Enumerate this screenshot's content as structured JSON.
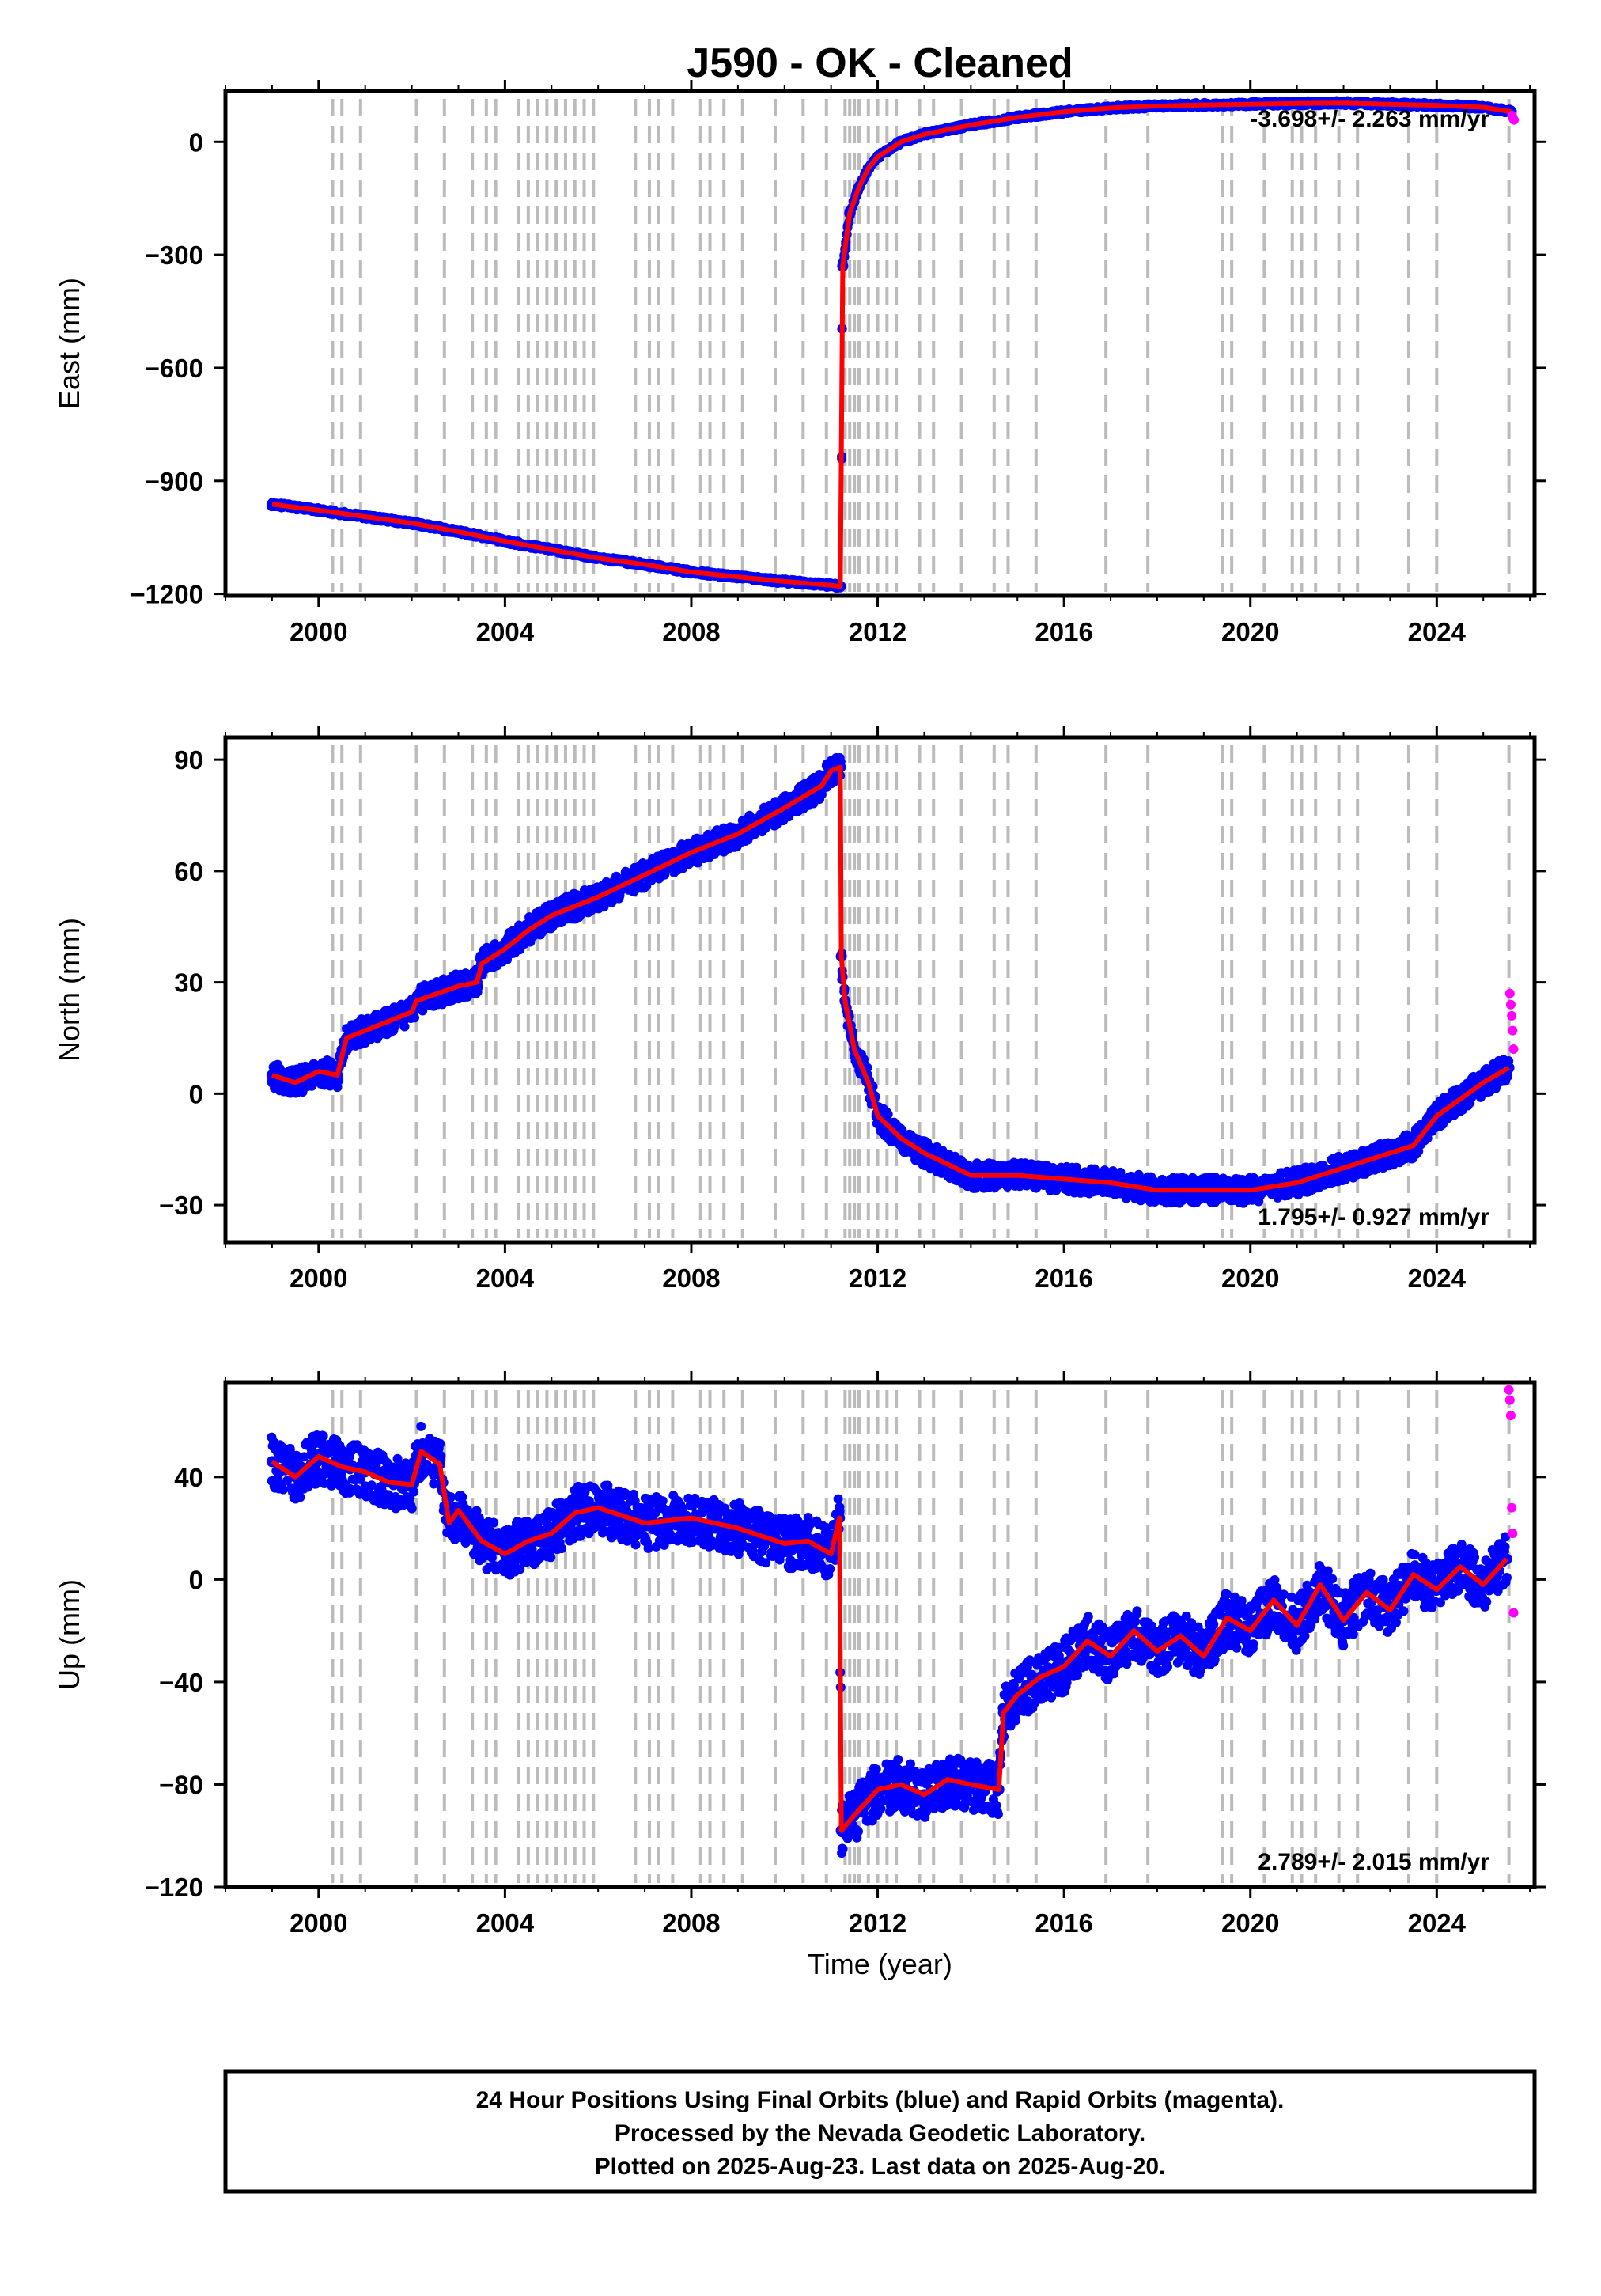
{
  "title": "J590  - OK - Cleaned",
  "colors": {
    "final_orbits": "#0000ff",
    "rapid_orbits": "#ff00ff",
    "model": "#ff0000",
    "event_lines": "#bbbbbb",
    "frame": "#000000"
  },
  "xlabel": "Time (year)",
  "footer": {
    "line1": "24 Hour Positions Using Final Orbits (blue) and Rapid Orbits (magenta).",
    "line2": "Processed by the Nevada Geodetic Laboratory.",
    "line3": "Plotted on 2025-Aug-23. Last data on 2025-Aug-20."
  },
  "chart_data": [
    {
      "type": "scatter",
      "panel": "east",
      "ylabel": "East (mm)",
      "rate_text": "-3.698+/- 2.263 mm/yr",
      "xlim": [
        1998.0,
        2026.1
      ],
      "ylim": [
        -1205,
        135
      ],
      "x_ticks": [
        2000,
        2004,
        2008,
        2012,
        2016,
        2020,
        2024
      ],
      "x_tick_labels": [
        "2000",
        "2004",
        "2008",
        "2012",
        "2016",
        "2020",
        "2024"
      ],
      "y_ticks": [
        -1200,
        -900,
        -600,
        -300,
        0
      ],
      "y_tick_labels": [
        "−1200",
        "−900",
        "−600",
        "−300",
        "0"
      ],
      "series": [
        {
          "role": "final",
          "x": [
            1999.0,
            2000.0,
            2001.0,
            2002.0,
            2003.0,
            2004.0,
            2005.0,
            2006.0,
            2007.0,
            2008.0,
            2009.0,
            2010.0,
            2011.0,
            2011.2,
            2011.25,
            2011.4,
            2011.6,
            2011.8,
            2012.0,
            2012.5,
            2013.0,
            2014.0,
            2015.0,
            2016.0,
            2017.0,
            2018.0,
            2019.0,
            2020.0,
            2021.0,
            2022.0,
            2023.0,
            2024.0,
            2025.0,
            2025.6
          ],
          "y": [
            -962,
            -978,
            -995,
            -1012,
            -1035,
            -1060,
            -1083,
            -1105,
            -1122,
            -1142,
            -1155,
            -1167,
            -1177,
            -1180,
            -330,
            -190,
            -120,
            -70,
            -40,
            0,
            20,
            45,
            65,
            80,
            90,
            95,
            98,
            100,
            102,
            103,
            100,
            97,
            92,
            80
          ]
        },
        {
          "role": "rapid",
          "x": [
            2025.62,
            2025.64,
            2025.66
          ],
          "y": [
            70,
            62,
            58
          ]
        }
      ]
    },
    {
      "type": "scatter",
      "panel": "north",
      "ylabel": "North (mm)",
      "rate_text": "1.795+/- 0.927 mm/yr",
      "xlim": [
        1998.0,
        2026.1
      ],
      "ylim": [
        -40,
        96
      ],
      "x_ticks": [
        2000,
        2004,
        2008,
        2012,
        2016,
        2020,
        2024
      ],
      "x_tick_labels": [
        "2000",
        "2004",
        "2008",
        "2012",
        "2016",
        "2020",
        "2024"
      ],
      "y_ticks": [
        -30,
        0,
        30,
        60,
        90
      ],
      "y_tick_labels": [
        "−30",
        "0",
        "30",
        "60",
        "90"
      ],
      "series": [
        {
          "role": "final",
          "x": [
            1999.0,
            1999.5,
            2000.0,
            2000.4,
            2000.6,
            2001.0,
            2002.0,
            2002.1,
            2003.0,
            2003.4,
            2003.5,
            2004.0,
            2004.5,
            2005.0,
            2006.0,
            2007.0,
            2008.0,
            2009.0,
            2010.0,
            2010.8,
            2011.0,
            2011.2,
            2011.22,
            2011.3,
            2011.5,
            2011.8,
            2012.0,
            2012.5,
            2013.0,
            2013.5,
            2014.0,
            2015.0,
            2016.0,
            2017.0,
            2018.0,
            2019.0,
            2019.5,
            2020.0,
            2021.0,
            2022.0,
            2023.0,
            2023.5,
            2024.0,
            2025.0,
            2025.55
          ],
          "y": [
            5,
            3,
            6,
            5,
            15,
            17,
            22,
            25,
            29,
            30,
            35,
            39,
            44,
            48,
            53,
            59,
            65,
            70,
            77,
            83,
            87,
            88,
            37,
            25,
            12,
            3,
            -6,
            -12,
            -16,
            -19,
            -22,
            -22,
            -23,
            -24,
            -26,
            -26,
            -26,
            -26,
            -24,
            -20,
            -16,
            -14,
            -6,
            3,
            7
          ]
        },
        {
          "role": "rapid",
          "x": [
            2025.57,
            2025.59,
            2025.61,
            2025.63,
            2025.65
          ],
          "y": [
            27,
            24,
            21,
            17,
            12
          ]
        }
      ]
    },
    {
      "type": "scatter",
      "panel": "up",
      "ylabel": "Up (mm)",
      "rate_text": "2.789+/- 2.015 mm/yr",
      "xlim": [
        1998.0,
        2026.1
      ],
      "ylim": [
        -120,
        77
      ],
      "x_ticks": [
        2000,
        2004,
        2008,
        2012,
        2016,
        2020,
        2024
      ],
      "x_tick_labels": [
        "2000",
        "2004",
        "2008",
        "2012",
        "2016",
        "2020",
        "2024"
      ],
      "y_ticks": [
        -120,
        -80,
        -40,
        0,
        40
      ],
      "y_tick_labels": [
        "−120",
        "−80",
        "−40",
        "0",
        "40"
      ],
      "series": [
        {
          "role": "final",
          "x": [
            1999.0,
            1999.5,
            2000.0,
            2000.5,
            2001.0,
            2001.5,
            2002.0,
            2002.2,
            2002.6,
            2002.8,
            2003.0,
            2003.5,
            2004.0,
            2004.5,
            2005.0,
            2005.5,
            2006.0,
            2007.0,
            2008.0,
            2009.0,
            2010.0,
            2010.5,
            2011.0,
            2011.18,
            2011.22,
            2011.5,
            2012.0,
            2012.5,
            2013.0,
            2013.5,
            2014.0,
            2014.6,
            2014.7,
            2015.0,
            2015.5,
            2016.0,
            2016.5,
            2017.0,
            2017.5,
            2018.0,
            2018.5,
            2019.0,
            2019.5,
            2020.0,
            2020.5,
            2021.0,
            2021.5,
            2022.0,
            2022.5,
            2023.0,
            2023.5,
            2024.0,
            2024.5,
            2025.0,
            2025.5
          ],
          "y": [
            46,
            40,
            48,
            44,
            42,
            38,
            37,
            50,
            45,
            22,
            27,
            15,
            10,
            15,
            18,
            26,
            28,
            22,
            24,
            20,
            14,
            15,
            10,
            24,
            -98,
            -92,
            -82,
            -80,
            -84,
            -78,
            -80,
            -82,
            -52,
            -45,
            -38,
            -34,
            -24,
            -30,
            -20,
            -28,
            -22,
            -30,
            -15,
            -20,
            -8,
            -18,
            -2,
            -16,
            -5,
            -12,
            2,
            -4,
            5,
            -2,
            8
          ]
        },
        {
          "role": "rapid",
          "x": [
            2025.55,
            2025.57,
            2025.59,
            2025.61,
            2025.63,
            2025.65
          ],
          "y": [
            74,
            70,
            64,
            28,
            18,
            -13
          ]
        }
      ]
    }
  ]
}
